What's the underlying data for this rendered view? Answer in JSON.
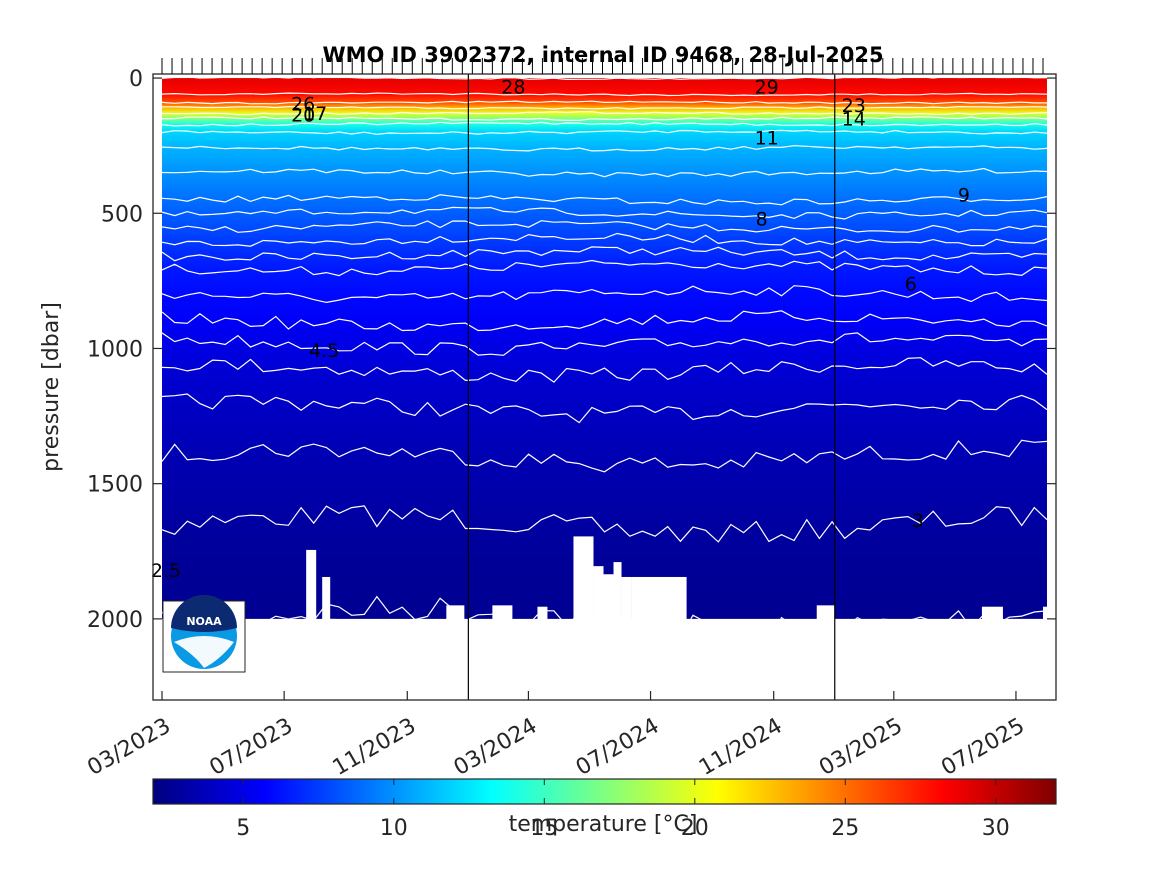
{
  "chart_data": {
    "type": "heatmap",
    "title": "WMO ID 3902372, internal ID 9468, 28-Jul-2025",
    "ylabel": "pressure [dbar]",
    "xlabel": "",
    "y_reversed": true,
    "ylim": [
      2300,
      -15
    ],
    "xlim": [
      "2023-02-20",
      "2025-08-10"
    ],
    "y_ticks": [
      0,
      500,
      1000,
      1500,
      2000
    ],
    "x_ticks": [
      "03/2023",
      "07/2023",
      "11/2023",
      "03/2024",
      "07/2024",
      "11/2024",
      "03/2025",
      "07/2025"
    ],
    "year_boundaries": [
      "2024-01-01",
      "2025-01-01"
    ],
    "profile_bottom_dbar": 2000,
    "colorbar": {
      "label": "temperature [°C]",
      "range": [
        2,
        32
      ],
      "ticks": [
        5,
        10,
        15,
        20,
        25,
        30
      ],
      "colormap": "jet",
      "orientation": "horizontal"
    },
    "depth_profile": {
      "pressure": [
        0,
        60,
        90,
        110,
        130,
        150,
        170,
        200,
        260,
        350,
        500,
        600,
        700,
        800,
        900,
        1000,
        1100,
        1250,
        1400,
        1600,
        1800,
        2000
      ],
      "temperature": [
        29,
        28,
        26,
        23,
        20,
        17,
        14,
        12,
        11,
        10,
        8.5,
        7.5,
        6.5,
        6,
        5.5,
        4.9,
        4.4,
        3.9,
        3.5,
        3.1,
        2.7,
        2.5
      ]
    },
    "contour_levels": [
      2.5,
      3,
      3.5,
      4,
      4.5,
      5,
      5.5,
      6,
      6.5,
      7,
      7.5,
      8,
      8.5,
      9,
      10,
      11,
      12,
      14,
      17,
      20,
      23,
      26,
      28,
      29
    ],
    "contour_labels": [
      {
        "text": "26",
        "date": "2023-07-20",
        "pressure": 95
      },
      {
        "text": "20",
        "date": "2023-07-20",
        "pressure": 135
      },
      {
        "text": "17",
        "date": "2023-08-01",
        "pressure": 130
      },
      {
        "text": "28",
        "date": "2024-02-15",
        "pressure": 32
      },
      {
        "text": "29",
        "date": "2024-10-25",
        "pressure": 32
      },
      {
        "text": "11",
        "date": "2024-10-25",
        "pressure": 220
      },
      {
        "text": "8",
        "date": "2024-10-20",
        "pressure": 520
      },
      {
        "text": "23",
        "date": "2025-01-20",
        "pressure": 100
      },
      {
        "text": "14",
        "date": "2025-01-20",
        "pressure": 150
      },
      {
        "text": "9",
        "date": "2025-05-10",
        "pressure": 430
      },
      {
        "text": "6",
        "date": "2025-03-18",
        "pressure": 760
      },
      {
        "text": "4.5",
        "date": "2023-08-10",
        "pressure": 1005
      },
      {
        "text": "3",
        "date": "2025-03-25",
        "pressure": 1635
      },
      {
        "text": "2.5",
        "date": "2023-03-05",
        "pressure": 1820
      }
    ],
    "data_gaps": [
      {
        "start": "2023-07-23",
        "end": "2023-08-02",
        "top_dbar": 1745
      },
      {
        "start": "2023-08-08",
        "end": "2023-08-16",
        "top_dbar": 1845
      },
      {
        "start": "2023-08-16",
        "end": "2023-08-22",
        "top_dbar": 2000
      },
      {
        "start": "2023-12-10",
        "end": "2023-12-28",
        "top_dbar": 1950
      },
      {
        "start": "2024-01-25",
        "end": "2024-02-14",
        "top_dbar": 1950
      },
      {
        "start": "2024-03-10",
        "end": "2024-03-20",
        "top_dbar": 1955
      },
      {
        "start": "2024-04-15",
        "end": "2024-05-05",
        "top_dbar": 1695
      },
      {
        "start": "2024-05-05",
        "end": "2024-05-15",
        "top_dbar": 1805
      },
      {
        "start": "2024-05-15",
        "end": "2024-05-25",
        "top_dbar": 1835
      },
      {
        "start": "2024-05-25",
        "end": "2024-06-02",
        "top_dbar": 1790
      },
      {
        "start": "2024-06-02",
        "end": "2024-06-12",
        "top_dbar": 1845
      },
      {
        "start": "2024-06-12",
        "end": "2024-08-06",
        "top_dbar": 1845
      },
      {
        "start": "2024-12-14",
        "end": "2025-01-01",
        "top_dbar": 1950
      },
      {
        "start": "2025-05-28",
        "end": "2025-06-18",
        "top_dbar": 1955
      },
      {
        "start": "2025-07-28",
        "end": "2025-08-10",
        "top_dbar": 1955
      }
    ],
    "logo": "noaa-logo"
  }
}
